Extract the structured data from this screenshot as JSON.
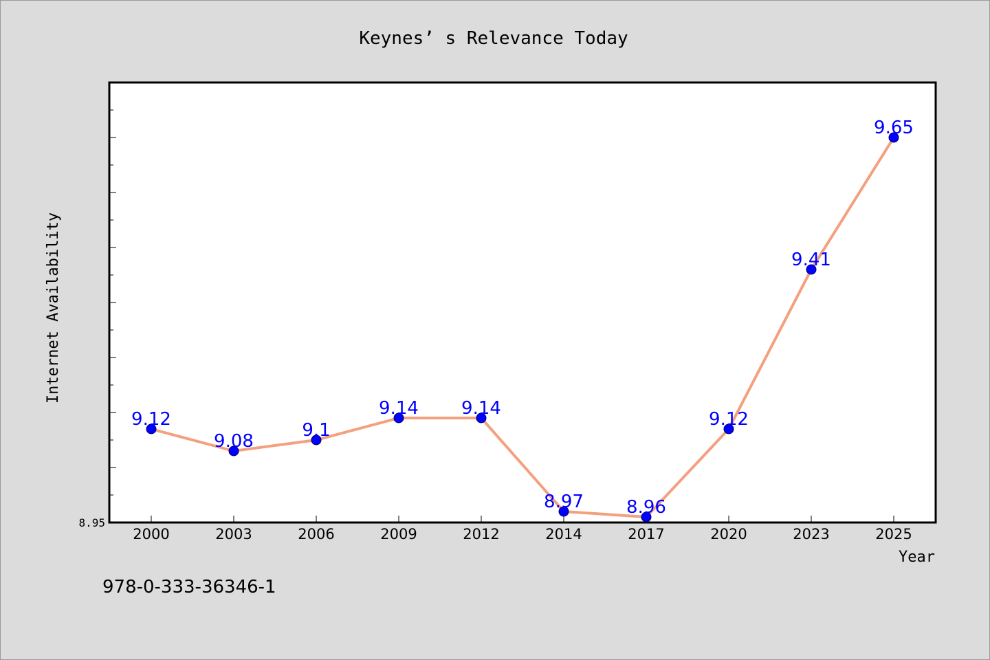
{
  "chart_data": {
    "type": "line",
    "title": "Keynes’ s Relevance Today",
    "xlabel": "Year",
    "ylabel": "Internet Availability",
    "categories": [
      "2000",
      "2003",
      "2006",
      "2009",
      "2012",
      "2014",
      "2017",
      "2020",
      "2023",
      "2025"
    ],
    "values": [
      9.12,
      9.08,
      9.1,
      9.14,
      9.14,
      8.97,
      8.96,
      9.12,
      9.41,
      9.65
    ],
    "data_labels": [
      "9.12",
      "9.08",
      "9.1",
      "9.14",
      "9.14",
      "8.97",
      "8.96",
      "9.12",
      "9.41",
      "9.65"
    ],
    "yticks": [
      "8.95"
    ],
    "ylim": [
      8.95,
      9.75
    ],
    "grid": false,
    "legend": "none",
    "colors": {
      "line": "#f4a07e",
      "marker": "#0000ff",
      "data_label": "#0000ff",
      "background": "#dcdcdc",
      "plot_background": "#ffffff"
    }
  },
  "footer": {
    "isbn": "978-0-333-36346-1"
  }
}
